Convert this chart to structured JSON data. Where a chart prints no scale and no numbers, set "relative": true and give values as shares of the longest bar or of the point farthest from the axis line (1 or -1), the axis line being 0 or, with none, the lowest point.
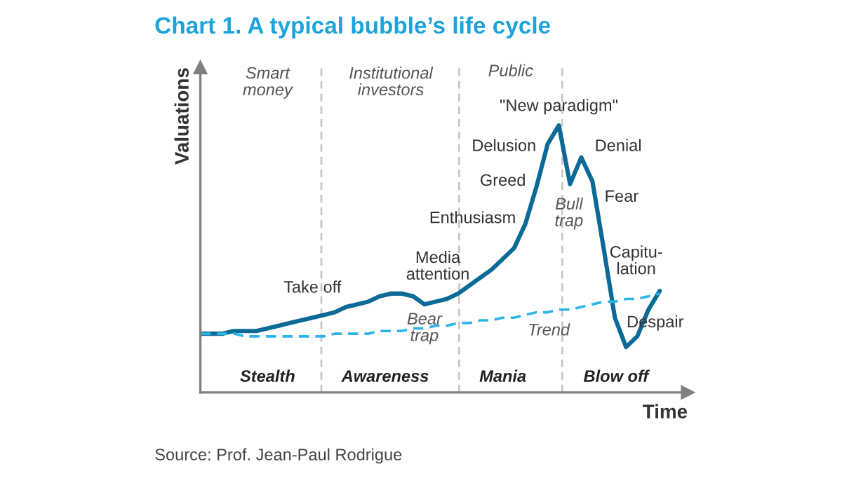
{
  "chart_data": {
    "type": "line",
    "title": "Chart 1. A typical bubble’s life cycle",
    "xlabel": "Time",
    "ylabel": "Valuations",
    "relative": true,
    "categories": [
      null,
      null,
      null,
      null,
      null,
      null,
      null,
      null,
      null,
      null,
      null,
      null,
      null,
      null,
      null,
      null,
      null,
      null,
      null,
      null,
      null,
      null,
      null,
      null,
      null,
      null,
      null,
      null,
      null,
      null,
      null,
      null,
      null,
      null,
      null,
      null,
      null,
      null,
      null,
      null,
      null,
      null
    ],
    "series": [
      {
        "color": "#0b6a96",
        "line_style": "solid",
        "values": [
          0.22,
          0.22,
          0.22,
          0.23,
          0.23,
          0.23,
          0.24,
          0.25,
          0.26,
          0.27,
          0.28,
          0.29,
          0.3,
          0.32,
          0.33,
          0.34,
          0.36,
          0.37,
          0.37,
          0.36,
          0.33,
          0.34,
          0.35,
          0.37,
          0.4,
          0.43,
          0.46,
          0.5,
          0.54,
          0.63,
          0.77,
          0.93,
          1.0,
          0.78,
          0.88,
          0.79,
          0.54,
          0.28,
          0.17,
          0.21,
          0.31,
          0.38
        ]
      },
      {
        "color": "#2bb4e8",
        "line_style": "dashed",
        "values": [
          0.22,
          0.22,
          0.22,
          0.22,
          0.21,
          0.21,
          0.21,
          0.21,
          0.21,
          0.21,
          0.21,
          0.21,
          0.22,
          0.22,
          0.22,
          0.22,
          0.23,
          0.23,
          0.23,
          0.24,
          0.24,
          0.25,
          0.25,
          0.26,
          0.26,
          0.27,
          0.27,
          0.28,
          0.28,
          0.29,
          0.3,
          0.3,
          0.31,
          0.31,
          0.32,
          0.33,
          0.34,
          0.34,
          0.35,
          0.35,
          0.36,
          0.37
        ]
      }
    ],
    "annotations": [
      "Smart\nmoney",
      "Institutional\ninvestors",
      "Public",
      "\"New paradigm\"",
      "Delusion",
      "Greed",
      "Enthusiasm",
      "Media\nattention",
      "Take off",
      "Bear\ntrap",
      "Bull\ntrap",
      "Denial",
      "Fear",
      "Capitu-\nlation",
      "Despair",
      "Trend",
      "Stealth",
      "Awareness",
      "Mania",
      "Blow off",
      "Source: Prof. Jean-Paul Rodrigue"
    ]
  }
}
